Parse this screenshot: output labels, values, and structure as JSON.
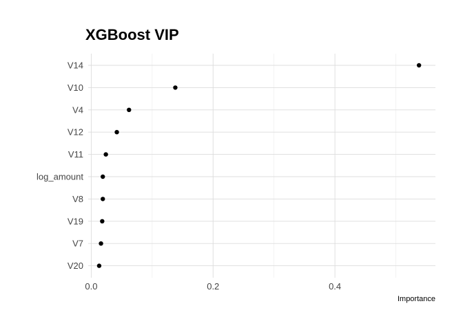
{
  "chart_data": {
    "type": "scatter",
    "title": "XGBoost VIP",
    "xlabel": "Importance",
    "ylabel": "",
    "xlim": [
      -0.005,
      0.565
    ],
    "x_ticks": [
      0.0,
      0.2,
      0.4
    ],
    "x_tick_labels": [
      "0.0",
      "0.2",
      "0.4"
    ],
    "x_minor_ticks": [
      0.1,
      0.3,
      0.5
    ],
    "grid": true,
    "categories": [
      "V14",
      "V10",
      "V4",
      "V12",
      "V11",
      "log_amount",
      "V8",
      "V19",
      "V7",
      "V20"
    ],
    "values": [
      0.538,
      0.138,
      0.062,
      0.042,
      0.024,
      0.019,
      0.019,
      0.018,
      0.016,
      0.013
    ]
  }
}
